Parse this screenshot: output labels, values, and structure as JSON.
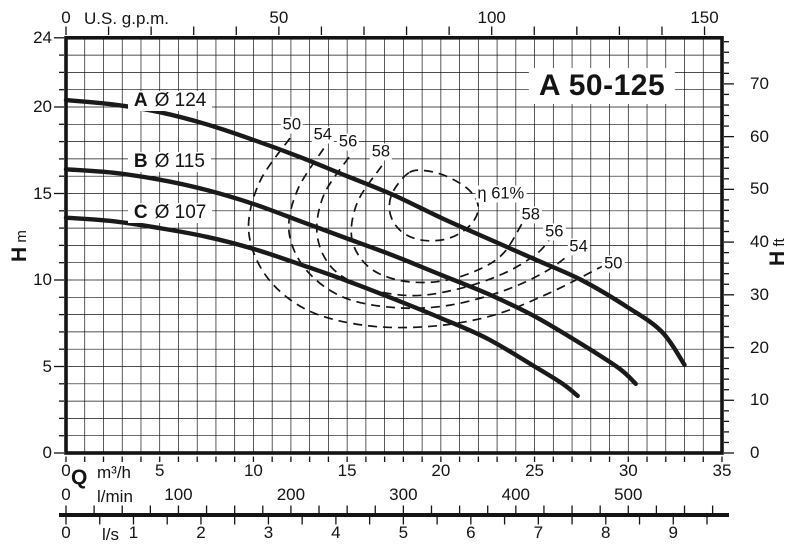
{
  "title": "A 50-125",
  "colors": {
    "ink": "#141414",
    "grid": "#2b2b2b",
    "background": "#ffffff",
    "curve": "#1a1a1a"
  },
  "labels": {
    "us_gpm": "U.S. g.p.m.",
    "q": "Q",
    "m3h": "m³/h",
    "lmin": "l/min",
    "ls": "l/s",
    "h_left": {
      "symbol": "H",
      "unit": "m"
    },
    "h_right": {
      "symbol": "H",
      "unit": "ft"
    }
  },
  "chart_data": {
    "type": "line",
    "title": "A 50-125",
    "xlabel": "Q",
    "ylabel": "H",
    "grid": "on, 1 m³/h × 1 m minor squares",
    "axes": {
      "bottom_m3h": {
        "unit": "m³/h",
        "range": [
          0,
          35
        ],
        "labeled_ticks": [
          0,
          5,
          10,
          15,
          20,
          25,
          30,
          35
        ],
        "minor_step": 1
      },
      "top_gpm": {
        "unit": "U.S. g.p.m.",
        "range": [
          0,
          150
        ],
        "labeled_ticks": [
          0,
          50,
          100,
          150
        ],
        "minor_step": 10,
        "m3h_per_unit": 0.227125
      },
      "bottom_lmin": {
        "unit": "l/min",
        "range": [
          0,
          575
        ],
        "labeled_ticks": [
          0,
          100,
          200,
          300,
          400,
          500
        ],
        "minor_step": 25,
        "m3h_per_unit": 0.06
      },
      "bottom_ls": {
        "unit": "l/s",
        "range": [
          0,
          9.5
        ],
        "labeled_ticks": [
          0,
          1,
          2,
          3,
          4,
          5,
          6,
          7,
          8,
          9
        ],
        "minor_step": 0.5,
        "m3h_per_unit": 3.6
      },
      "left_m": {
        "unit": "m",
        "symbol": "H",
        "range": [
          0,
          24
        ],
        "labeled_ticks": [
          0,
          5,
          10,
          15,
          20,
          24
        ],
        "minor_step": 1
      },
      "right_ft": {
        "unit": "ft",
        "symbol": "H",
        "range": [
          0,
          78
        ],
        "labeled_ticks": [
          0,
          10,
          20,
          30,
          40,
          50,
          60,
          70
        ],
        "minor_step": 2,
        "m_per_unit": 0.3048
      }
    },
    "series": [
      {
        "name": "A",
        "impeller": "Ø 124",
        "label_q": 3.3,
        "label_h": 20.35,
        "points": [
          [
            0,
            20.4
          ],
          [
            2.5,
            20.15
          ],
          [
            5,
            19.7
          ],
          [
            7.5,
            19.0
          ],
          [
            10,
            18.1
          ],
          [
            12.5,
            17.1
          ],
          [
            15,
            16.0
          ],
          [
            17.5,
            14.9
          ],
          [
            20,
            13.6
          ],
          [
            22.5,
            12.4
          ],
          [
            25,
            11.2
          ],
          [
            27.5,
            10.0
          ],
          [
            30,
            8.4
          ],
          [
            31.8,
            7.0
          ],
          [
            33,
            5.1
          ]
        ]
      },
      {
        "name": "B",
        "impeller": "Ø 115",
        "label_q": 3.3,
        "label_h": 16.8,
        "points": [
          [
            0,
            16.4
          ],
          [
            2.5,
            16.2
          ],
          [
            5,
            15.8
          ],
          [
            7.5,
            15.2
          ],
          [
            10,
            14.4
          ],
          [
            12.5,
            13.4
          ],
          [
            15,
            12.4
          ],
          [
            17.5,
            11.4
          ],
          [
            20,
            10.3
          ],
          [
            22.5,
            9.2
          ],
          [
            25,
            7.9
          ],
          [
            27.5,
            6.3
          ],
          [
            29.5,
            4.9
          ],
          [
            30.4,
            4.0
          ]
        ]
      },
      {
        "name": "C",
        "impeller": "Ø 107",
        "label_q": 3.3,
        "label_h": 13.9,
        "points": [
          [
            0,
            13.6
          ],
          [
            2.5,
            13.4
          ],
          [
            5,
            13.0
          ],
          [
            7.5,
            12.5
          ],
          [
            10,
            11.8
          ],
          [
            12.5,
            10.9
          ],
          [
            15,
            9.95
          ],
          [
            17.5,
            8.9
          ],
          [
            20,
            7.8
          ],
          [
            22.5,
            6.6
          ],
          [
            25,
            5.0
          ],
          [
            26.5,
            4.0
          ],
          [
            27.3,
            3.3
          ]
        ]
      }
    ],
    "efficiency_contours": [
      {
        "value": 50,
        "closed": false,
        "points": [
          [
            11.95,
            18.2
          ],
          [
            10.3,
            15.6
          ],
          [
            9.75,
            12.8
          ],
          [
            10.7,
            10.2
          ],
          [
            12.8,
            8.3
          ],
          [
            15.8,
            7.4
          ],
          [
            19.2,
            7.3
          ],
          [
            22.6,
            7.9
          ],
          [
            25.7,
            9.2
          ],
          [
            28.8,
            10.9
          ]
        ],
        "labels": [
          {
            "text": "50",
            "q": 12.05,
            "h": 18.95
          },
          {
            "text": "50",
            "q": 29.2,
            "h": 10.9
          }
        ]
      },
      {
        "value": 54,
        "closed": false,
        "points": [
          [
            13.75,
            17.6
          ],
          [
            12.35,
            15.2
          ],
          [
            11.9,
            12.8
          ],
          [
            12.8,
            10.6
          ],
          [
            14.8,
            9.0
          ],
          [
            17.6,
            8.4
          ],
          [
            20.5,
            8.55
          ],
          [
            23.4,
            9.4
          ],
          [
            25.6,
            10.5
          ],
          [
            27.0,
            11.6
          ]
        ],
        "labels": [
          {
            "text": "54",
            "q": 13.7,
            "h": 18.4
          },
          {
            "text": "54",
            "q": 27.35,
            "h": 11.9
          }
        ]
      },
      {
        "value": 56,
        "closed": false,
        "points": [
          [
            15.1,
            17.1
          ],
          [
            13.75,
            14.9
          ],
          [
            13.4,
            12.6
          ],
          [
            14.2,
            10.7
          ],
          [
            16.0,
            9.55
          ],
          [
            18.4,
            9.1
          ],
          [
            20.8,
            9.45
          ],
          [
            23.3,
            10.35
          ],
          [
            25.1,
            11.5
          ],
          [
            25.9,
            12.5
          ]
        ],
        "labels": [
          {
            "text": "56",
            "q": 15.05,
            "h": 18.0
          },
          {
            "text": "56",
            "q": 26.05,
            "h": 12.8
          }
        ]
      },
      {
        "value": 58,
        "closed": false,
        "points": [
          [
            16.85,
            16.6
          ],
          [
            15.55,
            14.5
          ],
          [
            15.25,
            12.4
          ],
          [
            16.1,
            10.8
          ],
          [
            17.7,
            10.0
          ],
          [
            19.8,
            9.9
          ],
          [
            21.8,
            10.5
          ],
          [
            23.3,
            11.5
          ],
          [
            24.35,
            13.3
          ]
        ],
        "labels": [
          {
            "text": "58",
            "q": 16.8,
            "h": 17.4
          },
          {
            "text": "58",
            "q": 24.8,
            "h": 13.75
          }
        ]
      },
      {
        "value": 61,
        "closed": true,
        "points": [
          [
            18.3,
            16.2
          ],
          [
            17.4,
            15.0
          ],
          [
            17.3,
            13.8
          ],
          [
            17.9,
            12.8
          ],
          [
            19.0,
            12.3
          ],
          [
            20.4,
            12.4
          ],
          [
            21.5,
            13.1
          ],
          [
            22.0,
            14.1
          ],
          [
            21.6,
            15.1
          ],
          [
            20.5,
            15.9
          ],
          [
            19.3,
            16.3
          ]
        ],
        "labels": [
          {
            "text": "η 61%",
            "q": 23.2,
            "h": 15.0
          }
        ]
      }
    ]
  }
}
